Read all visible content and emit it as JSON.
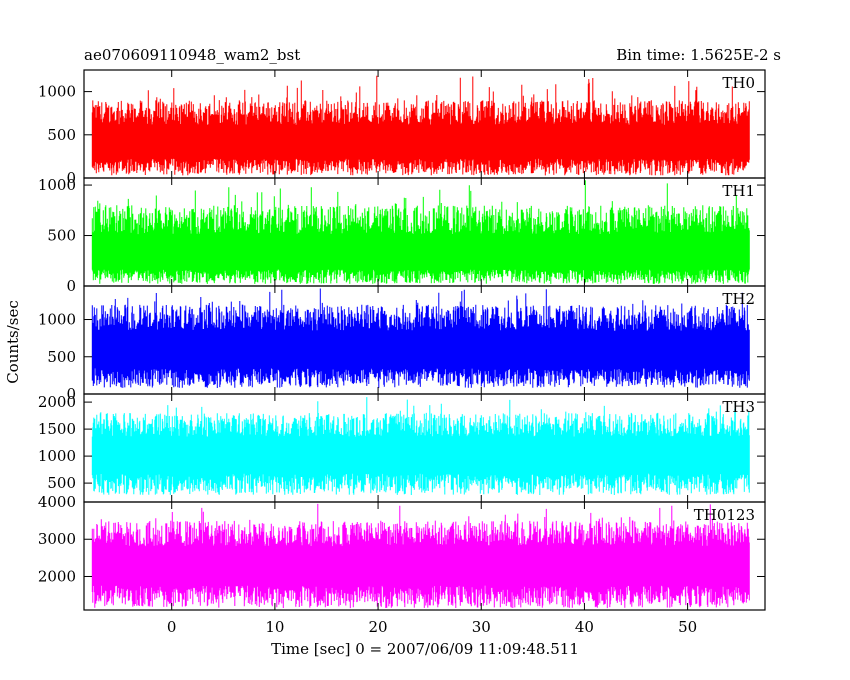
{
  "chart_data": {
    "type": "line",
    "title": "ae070609110948_wam2_bst",
    "subtitle": "Bin time: 1.5625E-2 s",
    "xlabel": "Time [sec] 0 = 2007/06/09 11:09:48.511",
    "ylabel": "Counts/sec",
    "xlim": [
      -8.5,
      57.5
    ],
    "x_data_range": [
      -7.7,
      56
    ],
    "xticks": [
      0,
      10,
      20,
      30,
      40,
      50
    ],
    "x_tick_labels": [
      "0",
      "10",
      "20",
      "30",
      "40",
      "50"
    ],
    "panels": [
      {
        "name": "TH0",
        "color": "#ff0000",
        "ylim": [
          0,
          1250
        ],
        "yticks": [
          0,
          500,
          1000
        ],
        "y_tick_labels": [
          "0",
          "500",
          "1000"
        ],
        "mean": 380,
        "envelope_low": 30,
        "envelope_high": 900,
        "spike_max": 1250
      },
      {
        "name": "TH1",
        "color": "#00ff00",
        "ylim": [
          0,
          1070
        ],
        "yticks": [
          0,
          500,
          1000
        ],
        "y_tick_labels": [
          "0",
          "500",
          "1000"
        ],
        "mean": 280,
        "envelope_low": 20,
        "envelope_high": 800,
        "spike_max": 1070
      },
      {
        "name": "TH2",
        "color": "#0000ff",
        "ylim": [
          0,
          1450
        ],
        "yticks": [
          0,
          500,
          1000
        ],
        "y_tick_labels": [
          "0",
          "500",
          "1000"
        ],
        "mean": 560,
        "envelope_low": 80,
        "envelope_high": 1200,
        "spike_max": 1450
      },
      {
        "name": "TH3",
        "color": "#00ffff",
        "ylim": [
          150,
          2150
        ],
        "yticks": [
          500,
          1000,
          1500,
          2000
        ],
        "y_tick_labels": [
          "500",
          "1000",
          "1500",
          "2000"
        ],
        "mean": 1000,
        "envelope_low": 280,
        "envelope_high": 1800,
        "spike_max": 2150
      },
      {
        "name": "TH0123",
        "color": "#ff00ff",
        "ylim": [
          1100,
          4000
        ],
        "yticks": [
          2000,
          3000,
          4000
        ],
        "y_tick_labels": [
          "2000",
          "3000",
          "4000"
        ],
        "mean": 2250,
        "envelope_low": 1150,
        "envelope_high": 3500,
        "spike_max": 4000
      }
    ],
    "grid": false,
    "legend": "panel labels at top-right of each panel"
  }
}
